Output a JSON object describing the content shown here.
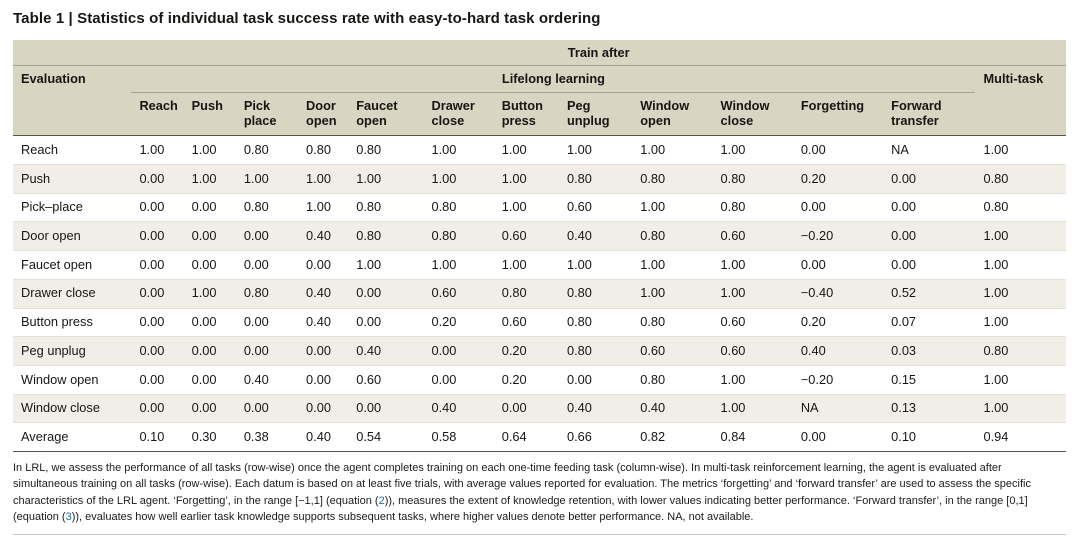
{
  "title": "Table 1 | Statistics of individual task success rate with easy-to-hard task ordering",
  "table": {
    "spanners": {
      "train_after": "Train after",
      "evaluation": "Evaluation",
      "lifelong": "Lifelong learning",
      "multitask": "Multi-task"
    },
    "columns": [
      "Reach",
      "Push",
      "Pick place",
      "Door open",
      "Faucet open",
      "Drawer close",
      "Button press",
      "Peg unplug",
      "Window open",
      "Window close",
      "Forgetting",
      "Forward transfer"
    ],
    "rows": [
      {
        "label": "Reach",
        "values": [
          "1.00",
          "1.00",
          "0.80",
          "0.80",
          "0.80",
          "1.00",
          "1.00",
          "1.00",
          "1.00",
          "1.00",
          "0.00",
          "NA",
          "1.00"
        ]
      },
      {
        "label": "Push",
        "values": [
          "0.00",
          "1.00",
          "1.00",
          "1.00",
          "1.00",
          "1.00",
          "1.00",
          "0.80",
          "0.80",
          "0.80",
          "0.20",
          "0.00",
          "0.80"
        ]
      },
      {
        "label": "Pick–place",
        "values": [
          "0.00",
          "0.00",
          "0.80",
          "1.00",
          "0.80",
          "0.80",
          "1.00",
          "0.60",
          "1.00",
          "0.80",
          "0.00",
          "0.00",
          "0.80"
        ]
      },
      {
        "label": "Door open",
        "values": [
          "0.00",
          "0.00",
          "0.00",
          "0.40",
          "0.80",
          "0.80",
          "0.60",
          "0.40",
          "0.80",
          "0.60",
          "−0.20",
          "0.00",
          "1.00"
        ]
      },
      {
        "label": "Faucet open",
        "values": [
          "0.00",
          "0.00",
          "0.00",
          "0.00",
          "1.00",
          "1.00",
          "1.00",
          "1.00",
          "1.00",
          "1.00",
          "0.00",
          "0.00",
          "1.00"
        ]
      },
      {
        "label": "Drawer close",
        "values": [
          "0.00",
          "1.00",
          "0.80",
          "0.40",
          "0.00",
          "0.60",
          "0.80",
          "0.80",
          "1.00",
          "1.00",
          "−0.40",
          "0.52",
          "1.00"
        ]
      },
      {
        "label": "Button press",
        "values": [
          "0.00",
          "0.00",
          "0.00",
          "0.40",
          "0.00",
          "0.20",
          "0.60",
          "0.80",
          "0.80",
          "0.60",
          "0.20",
          "0.07",
          "1.00"
        ]
      },
      {
        "label": "Peg unplug",
        "values": [
          "0.00",
          "0.00",
          "0.00",
          "0.00",
          "0.40",
          "0.00",
          "0.20",
          "0.80",
          "0.60",
          "0.60",
          "0.40",
          "0.03",
          "0.80"
        ]
      },
      {
        "label": "Window open",
        "values": [
          "0.00",
          "0.00",
          "0.40",
          "0.00",
          "0.60",
          "0.00",
          "0.20",
          "0.00",
          "0.80",
          "1.00",
          "−0.20",
          "0.15",
          "1.00"
        ]
      },
      {
        "label": "Window close",
        "values": [
          "0.00",
          "0.00",
          "0.00",
          "0.00",
          "0.00",
          "0.40",
          "0.00",
          "0.40",
          "0.40",
          "1.00",
          "NA",
          "0.13",
          "1.00"
        ]
      },
      {
        "label": "Average",
        "values": [
          "0.10",
          "0.30",
          "0.38",
          "0.40",
          "0.54",
          "0.58",
          "0.64",
          "0.66",
          "0.82",
          "0.84",
          "0.00",
          "0.10",
          "0.94"
        ]
      }
    ]
  },
  "footnote": {
    "parts": [
      "In LRL, we assess the performance of all tasks (row-wise) once the agent completes training on each one-time feeding task (column-wise). In multi-task reinforcement learning, the agent is evaluated after simultaneous training on all tasks (row-wise). Each datum is based on at least five trials, with average values reported for evaluation. The metrics ‘forgetting’ and ‘forward transfer’ are used to assess the specific characteristics of the LRL agent. ‘Forgetting’, in the range [−1,1] (equation (",
      ")), measures the extent of knowledge retention, with lower values indicating better performance. ‘Forward transfer’, in the range [0,1] (equation (",
      ")), evaluates how well earlier task knowledge supports subsequent tasks, where higher values denote better performance. NA, not available."
    ],
    "links": [
      "2",
      "3"
    ]
  },
  "colors": {
    "header_bg": "#d9d5c3",
    "row_alt_bg": "#f0eee7",
    "rule_dark": "#55534a",
    "rule_light": "#e4e2d8",
    "link": "#1d6bb0"
  }
}
